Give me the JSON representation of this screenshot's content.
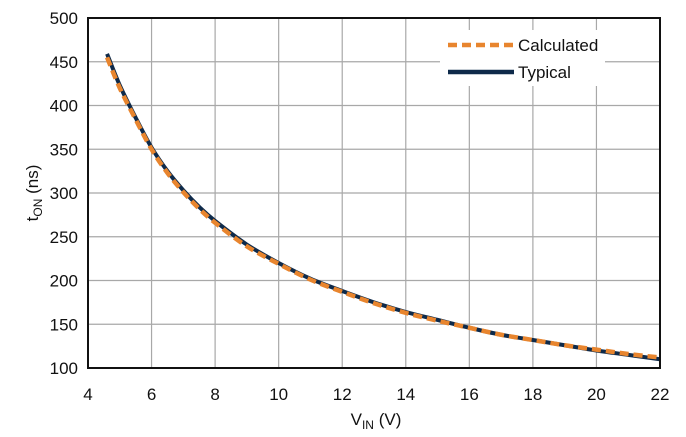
{
  "chart_data": {
    "type": "line",
    "title": "",
    "xlabel": {
      "main": "V",
      "sub": "IN",
      "unit": " (V)"
    },
    "ylabel": {
      "main": "t",
      "sub": "ON",
      "unit": " (ns)"
    },
    "xlim": [
      4,
      22
    ],
    "ylim": [
      100,
      500
    ],
    "xticks": [
      "4",
      "6",
      "8",
      "10",
      "12",
      "14",
      "16",
      "18",
      "20",
      "22"
    ],
    "yticks": [
      "100",
      "150",
      "200",
      "250",
      "300",
      "350",
      "400",
      "450",
      "500"
    ],
    "grid": true,
    "legend_position": "top-right",
    "series": [
      {
        "name": "Calculated",
        "color": "#E8852E",
        "style": "dashed",
        "x": [
          4.6,
          5,
          5.5,
          6,
          6.5,
          7,
          7.5,
          8,
          9,
          10,
          11,
          12,
          13,
          14,
          15,
          16,
          17,
          18,
          19,
          20,
          21,
          22
        ],
        "y": [
          455,
          420,
          384,
          350,
          323,
          301,
          282,
          266,
          239,
          219,
          201,
          187,
          174,
          163,
          154,
          146,
          138,
          132,
          126,
          121,
          116,
          112
        ]
      },
      {
        "name": "Typical",
        "color": "#0E2A4A",
        "style": "solid",
        "x": [
          4.6,
          5,
          5.5,
          6,
          6.5,
          7,
          7.5,
          8,
          9,
          10,
          11,
          12,
          13,
          14,
          15,
          16,
          17,
          18,
          19,
          20,
          21,
          22
        ],
        "y": [
          459,
          423,
          386,
          352,
          325,
          303,
          284,
          268,
          241,
          220,
          202,
          188,
          175,
          164,
          155,
          146,
          138,
          132,
          126,
          120,
          115,
          110
        ]
      }
    ]
  }
}
